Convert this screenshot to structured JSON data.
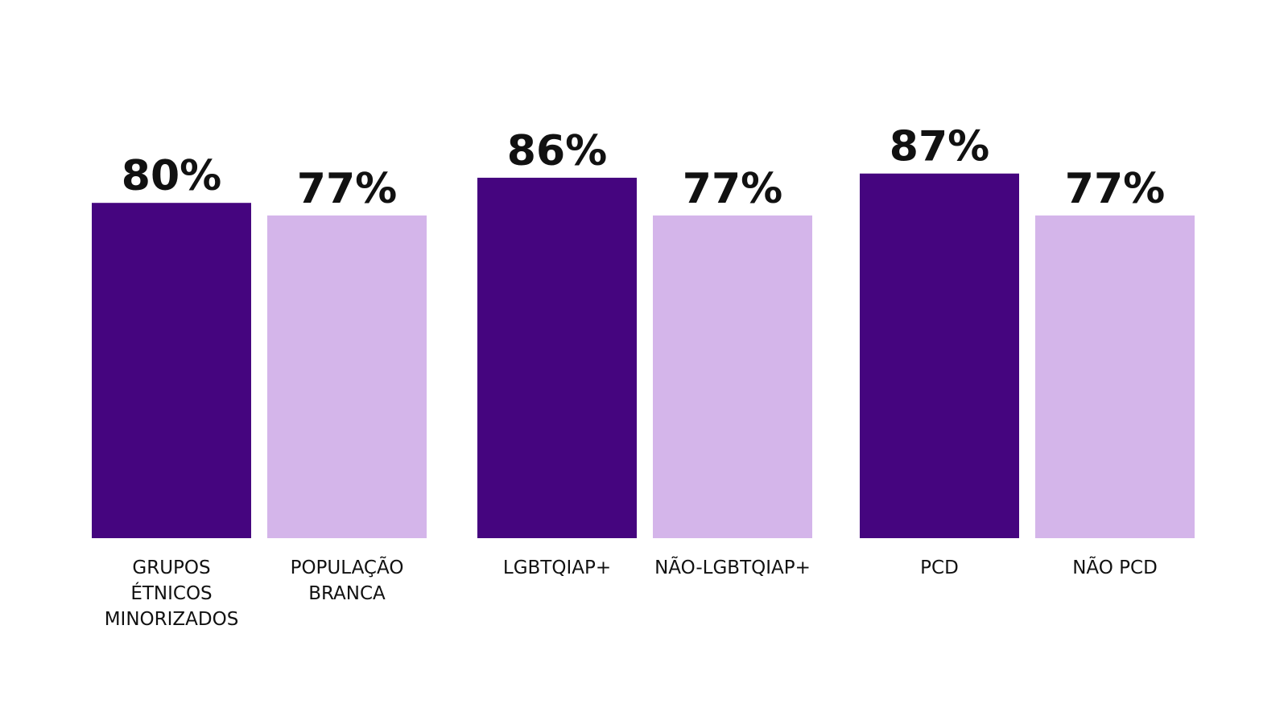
{
  "chart_data": {
    "type": "bar",
    "categories": [
      "GRUPOS ÉTNICOS MINORIZADOS",
      "POPULAÇÃO BRANCA",
      "LGBTQIAP+",
      "NÃO-LGBTQIAP+",
      "PCD",
      "NÃO PCD"
    ],
    "category_lines": [
      [
        "GRUPOS",
        "ÉTNICOS",
        "MINORIZADOS"
      ],
      [
        "POPULAÇÃO",
        "BRANCA"
      ],
      [
        "LGBTQIAP+"
      ],
      [
        "NÃO-LGBTQIAP+"
      ],
      [
        "PCD"
      ],
      [
        "NÃO PCD"
      ]
    ],
    "values": [
      80,
      77,
      86,
      77,
      87,
      77
    ],
    "value_labels": [
      "80%",
      "77%",
      "86%",
      "77%",
      "87%",
      "77%"
    ],
    "groups": [
      [
        0,
        1
      ],
      [
        2,
        3
      ],
      [
        4,
        5
      ]
    ],
    "bar_colors": [
      "#45057f",
      "#d4b5ea",
      "#45057f",
      "#d4b5ea",
      "#45057f",
      "#d4b5ea"
    ],
    "title": "",
    "xlabel": "",
    "ylabel": "",
    "grid": false,
    "legend": "none"
  }
}
